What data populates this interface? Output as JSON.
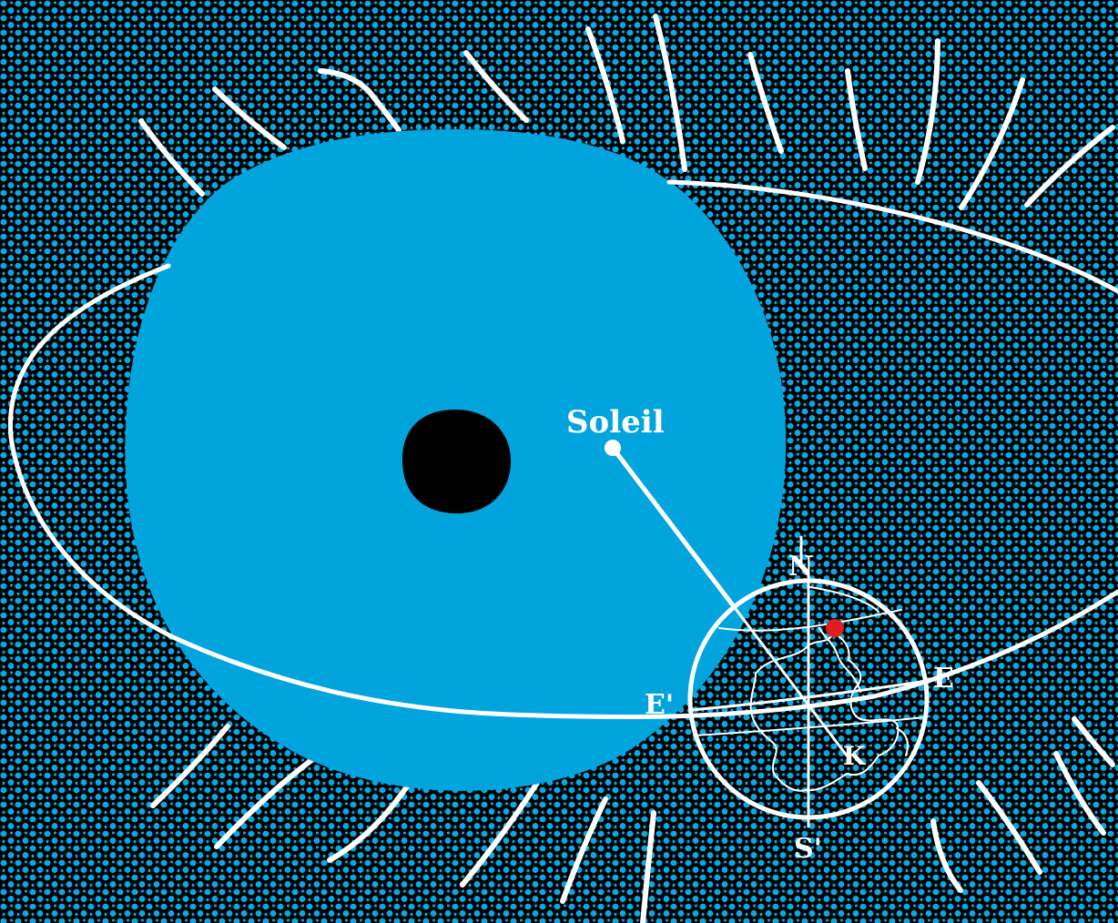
{
  "labels": {
    "sun": "Soleil",
    "north": "N",
    "south": "S'",
    "east": "E",
    "east_prime": "E'",
    "point_k": "K"
  },
  "colors": {
    "background": "#000000",
    "dots": "#0aa7e0",
    "sun_disc": "#02a4de",
    "core": "#000000",
    "lines": "#ffffff",
    "marker": "#e11d1d"
  },
  "icons": {
    "sun": "sun-disc",
    "earth": "globe-with-continents",
    "marker": "red-dot-location"
  }
}
